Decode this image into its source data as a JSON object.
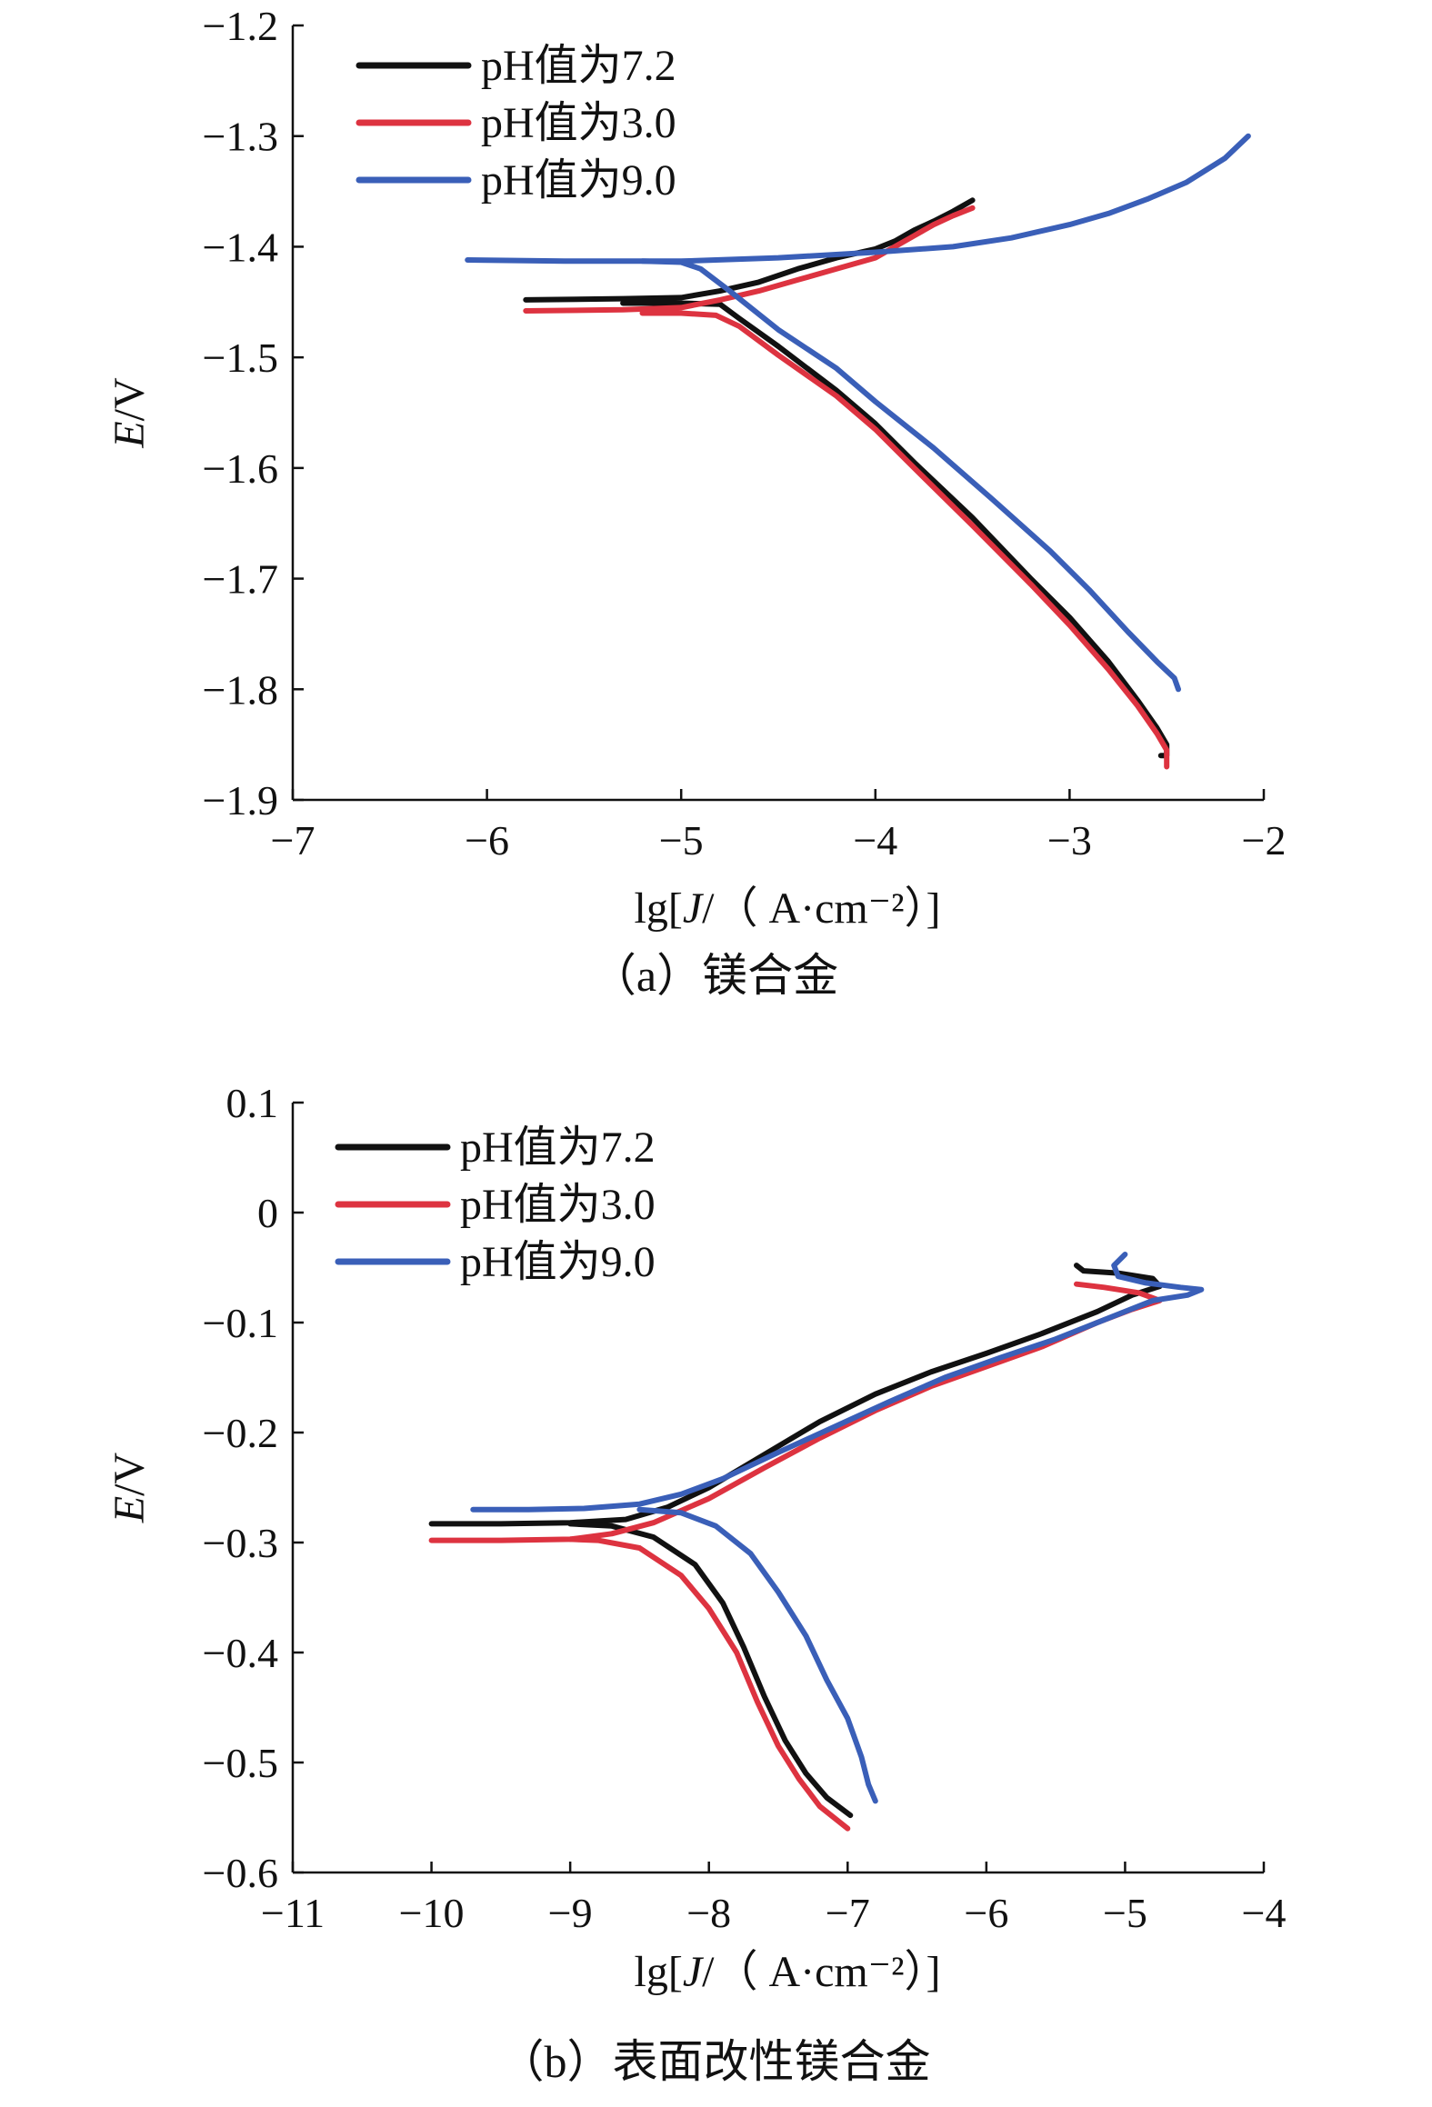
{
  "chart_data": [
    {
      "type": "line",
      "caption": "（a）镁合金",
      "xlabel_prefix": "lg[",
      "xlabel_italic": "J",
      "xlabel_suffix": "/（ A·cm⁻²）]",
      "ylabel_italic": "E",
      "ylabel_suffix": "/V",
      "xlim": [
        -7,
        -2
      ],
      "ylim": [
        -1.9,
        -1.2
      ],
      "xticks": [
        -7,
        -6,
        -5,
        -4,
        -3,
        -2
      ],
      "xtick_labels": [
        "−7",
        "−6",
        "−5",
        "−4",
        "−3",
        "−2"
      ],
      "yticks": [
        -1.9,
        -1.8,
        -1.7,
        -1.6,
        -1.5,
        -1.4,
        -1.3,
        -1.2
      ],
      "ytick_labels": [
        "−1.9",
        "−1.8",
        "−1.7",
        "−1.6",
        "−1.5",
        "−1.4",
        "−1.3",
        "−1.2"
      ],
      "legend_position": "top-left",
      "series": [
        {
          "name": "pH值为7.2",
          "color": "#111111",
          "points": [
            [
              -5.8,
              -1.448
            ],
            [
              -5.3,
              -1.447
            ],
            [
              -5.0,
              -1.446
            ],
            [
              -4.8,
              -1.44
            ],
            [
              -4.6,
              -1.432
            ],
            [
              -4.4,
              -1.42
            ],
            [
              -4.2,
              -1.41
            ],
            [
              -4.0,
              -1.402
            ],
            [
              -3.9,
              -1.395
            ],
            [
              -3.8,
              -1.385
            ],
            [
              -3.7,
              -1.377
            ],
            [
              -3.6,
              -1.368
            ],
            [
              -3.5,
              -1.358
            ]
          ],
          "branch2": [
            [
              -5.3,
              -1.451
            ],
            [
              -5.0,
              -1.451
            ],
            [
              -4.8,
              -1.452
            ],
            [
              -4.7,
              -1.465
            ],
            [
              -4.5,
              -1.49
            ],
            [
              -4.2,
              -1.53
            ],
            [
              -4.0,
              -1.56
            ],
            [
              -3.8,
              -1.595
            ],
            [
              -3.5,
              -1.645
            ],
            [
              -3.2,
              -1.7
            ],
            [
              -3.0,
              -1.735
            ],
            [
              -2.8,
              -1.775
            ],
            [
              -2.65,
              -1.81
            ],
            [
              -2.55,
              -1.835
            ],
            [
              -2.5,
              -1.85
            ],
            [
              -2.5,
              -1.86
            ],
            [
              -2.53,
              -1.86
            ]
          ]
        },
        {
          "name": "pH值为3.0",
          "color": "#dd3340",
          "points": [
            [
              -5.8,
              -1.458
            ],
            [
              -5.3,
              -1.457
            ],
            [
              -5.0,
              -1.455
            ],
            [
              -4.8,
              -1.448
            ],
            [
              -4.6,
              -1.44
            ],
            [
              -4.4,
              -1.43
            ],
            [
              -4.2,
              -1.42
            ],
            [
              -4.0,
              -1.41
            ],
            [
              -3.9,
              -1.4
            ],
            [
              -3.8,
              -1.39
            ],
            [
              -3.7,
              -1.38
            ],
            [
              -3.6,
              -1.372
            ],
            [
              -3.5,
              -1.365
            ]
          ],
          "branch2": [
            [
              -5.2,
              -1.46
            ],
            [
              -5.0,
              -1.46
            ],
            [
              -4.82,
              -1.462
            ],
            [
              -4.7,
              -1.472
            ],
            [
              -4.5,
              -1.498
            ],
            [
              -4.2,
              -1.535
            ],
            [
              -4.0,
              -1.565
            ],
            [
              -3.8,
              -1.6
            ],
            [
              -3.5,
              -1.652
            ],
            [
              -3.2,
              -1.705
            ],
            [
              -3.0,
              -1.742
            ],
            [
              -2.8,
              -1.782
            ],
            [
              -2.65,
              -1.815
            ],
            [
              -2.55,
              -1.84
            ],
            [
              -2.5,
              -1.855
            ],
            [
              -2.5,
              -1.87
            ]
          ]
        },
        {
          "name": "pH值为9.0",
          "color": "#3a5fb8",
          "points": [
            [
              -6.1,
              -1.412
            ],
            [
              -5.6,
              -1.413
            ],
            [
              -5.0,
              -1.413
            ],
            [
              -4.5,
              -1.41
            ],
            [
              -4.0,
              -1.405
            ],
            [
              -3.6,
              -1.4
            ],
            [
              -3.3,
              -1.392
            ],
            [
              -3.0,
              -1.38
            ],
            [
              -2.8,
              -1.37
            ],
            [
              -2.6,
              -1.357
            ],
            [
              -2.4,
              -1.342
            ],
            [
              -2.2,
              -1.32
            ],
            [
              -2.08,
              -1.3
            ]
          ],
          "branch2": [
            [
              -5.2,
              -1.413
            ],
            [
              -5.0,
              -1.414
            ],
            [
              -4.9,
              -1.42
            ],
            [
              -4.75,
              -1.44
            ],
            [
              -4.5,
              -1.475
            ],
            [
              -4.2,
              -1.51
            ],
            [
              -4.0,
              -1.54
            ],
            [
              -3.7,
              -1.582
            ],
            [
              -3.4,
              -1.628
            ],
            [
              -3.1,
              -1.675
            ],
            [
              -2.9,
              -1.71
            ],
            [
              -2.7,
              -1.748
            ],
            [
              -2.55,
              -1.775
            ],
            [
              -2.46,
              -1.79
            ],
            [
              -2.44,
              -1.8
            ]
          ]
        }
      ]
    },
    {
      "type": "line",
      "caption": "（b）表面改性镁合金",
      "xlabel_prefix": "lg[",
      "xlabel_italic": "J",
      "xlabel_suffix": "/（ A·cm⁻²）]",
      "ylabel_italic": "E",
      "ylabel_suffix": "/V",
      "xlim": [
        -11,
        -4
      ],
      "ylim": [
        -0.6,
        0.1
      ],
      "xticks": [
        -11,
        -10,
        -9,
        -8,
        -7,
        -6,
        -5,
        -4
      ],
      "xtick_labels": [
        "−11",
        "−10",
        "−9",
        "−8",
        "−7",
        "−6",
        "−5",
        "−4"
      ],
      "yticks": [
        -0.6,
        -0.5,
        -0.4,
        -0.3,
        -0.2,
        -0.1,
        0,
        0.1
      ],
      "ytick_labels": [
        "−0.6",
        "−0.5",
        "−0.4",
        "−0.3",
        "−0.2",
        "−0.1",
        "0",
        "0.1"
      ],
      "legend_position": "top-left",
      "series": [
        {
          "name": "pH值为7.2",
          "color": "#111111",
          "points": [
            [
              -10.0,
              -0.283
            ],
            [
              -9.5,
              -0.283
            ],
            [
              -9.0,
              -0.282
            ],
            [
              -8.6,
              -0.279
            ],
            [
              -8.3,
              -0.268
            ],
            [
              -8.0,
              -0.25
            ],
            [
              -7.6,
              -0.22
            ],
            [
              -7.2,
              -0.19
            ],
            [
              -6.8,
              -0.165
            ],
            [
              -6.4,
              -0.145
            ],
            [
              -6.0,
              -0.128
            ],
            [
              -5.6,
              -0.11
            ],
            [
              -5.2,
              -0.09
            ],
            [
              -4.95,
              -0.075
            ],
            [
              -4.75,
              -0.067
            ],
            [
              -4.8,
              -0.06
            ],
            [
              -5.05,
              -0.055
            ],
            [
              -5.3,
              -0.053
            ],
            [
              -5.35,
              -0.048
            ]
          ],
          "branch2": [
            [
              -9.0,
              -0.283
            ],
            [
              -8.7,
              -0.285
            ],
            [
              -8.4,
              -0.295
            ],
            [
              -8.1,
              -0.32
            ],
            [
              -7.9,
              -0.355
            ],
            [
              -7.75,
              -0.395
            ],
            [
              -7.6,
              -0.44
            ],
            [
              -7.45,
              -0.48
            ],
            [
              -7.3,
              -0.51
            ],
            [
              -7.15,
              -0.532
            ],
            [
              -6.98,
              -0.548
            ]
          ]
        },
        {
          "name": "pH值为3.0",
          "color": "#dd3340",
          "points": [
            [
              -10.0,
              -0.298
            ],
            [
              -9.5,
              -0.298
            ],
            [
              -9.0,
              -0.297
            ],
            [
              -8.7,
              -0.292
            ],
            [
              -8.4,
              -0.282
            ],
            [
              -8.0,
              -0.26
            ],
            [
              -7.6,
              -0.232
            ],
            [
              -7.2,
              -0.205
            ],
            [
              -6.8,
              -0.18
            ],
            [
              -6.4,
              -0.158
            ],
            [
              -6.0,
              -0.14
            ],
            [
              -5.6,
              -0.122
            ],
            [
              -5.2,
              -0.1
            ],
            [
              -4.95,
              -0.088
            ],
            [
              -4.75,
              -0.08
            ],
            [
              -4.9,
              -0.073
            ],
            [
              -5.15,
              -0.068
            ],
            [
              -5.35,
              -0.065
            ]
          ],
          "branch2": [
            [
              -9.0,
              -0.297
            ],
            [
              -8.8,
              -0.298
            ],
            [
              -8.5,
              -0.305
            ],
            [
              -8.2,
              -0.33
            ],
            [
              -8.0,
              -0.36
            ],
            [
              -7.8,
              -0.4
            ],
            [
              -7.65,
              -0.445
            ],
            [
              -7.5,
              -0.485
            ],
            [
              -7.35,
              -0.515
            ],
            [
              -7.2,
              -0.54
            ],
            [
              -7.0,
              -0.56
            ]
          ]
        },
        {
          "name": "pH值为9.0",
          "color": "#3a5fb8",
          "points": [
            [
              -9.7,
              -0.27
            ],
            [
              -9.3,
              -0.27
            ],
            [
              -8.9,
              -0.269
            ],
            [
              -8.5,
              -0.265
            ],
            [
              -8.2,
              -0.256
            ],
            [
              -7.9,
              -0.242
            ],
            [
              -7.5,
              -0.218
            ],
            [
              -7.1,
              -0.195
            ],
            [
              -6.7,
              -0.172
            ],
            [
              -6.3,
              -0.15
            ],
            [
              -5.9,
              -0.132
            ],
            [
              -5.5,
              -0.115
            ],
            [
              -5.1,
              -0.095
            ],
            [
              -4.8,
              -0.08
            ],
            [
              -4.55,
              -0.075
            ],
            [
              -4.45,
              -0.07
            ],
            [
              -4.6,
              -0.068
            ],
            [
              -4.85,
              -0.064
            ],
            [
              -5.05,
              -0.058
            ],
            [
              -5.08,
              -0.048
            ],
            [
              -5.0,
              -0.038
            ]
          ],
          "branch2": [
            [
              -8.5,
              -0.27
            ],
            [
              -8.2,
              -0.273
            ],
            [
              -7.95,
              -0.285
            ],
            [
              -7.7,
              -0.31
            ],
            [
              -7.5,
              -0.345
            ],
            [
              -7.3,
              -0.385
            ],
            [
              -7.15,
              -0.425
            ],
            [
              -7.0,
              -0.46
            ],
            [
              -6.9,
              -0.495
            ],
            [
              -6.85,
              -0.52
            ],
            [
              -6.8,
              -0.535
            ]
          ]
        }
      ]
    }
  ]
}
